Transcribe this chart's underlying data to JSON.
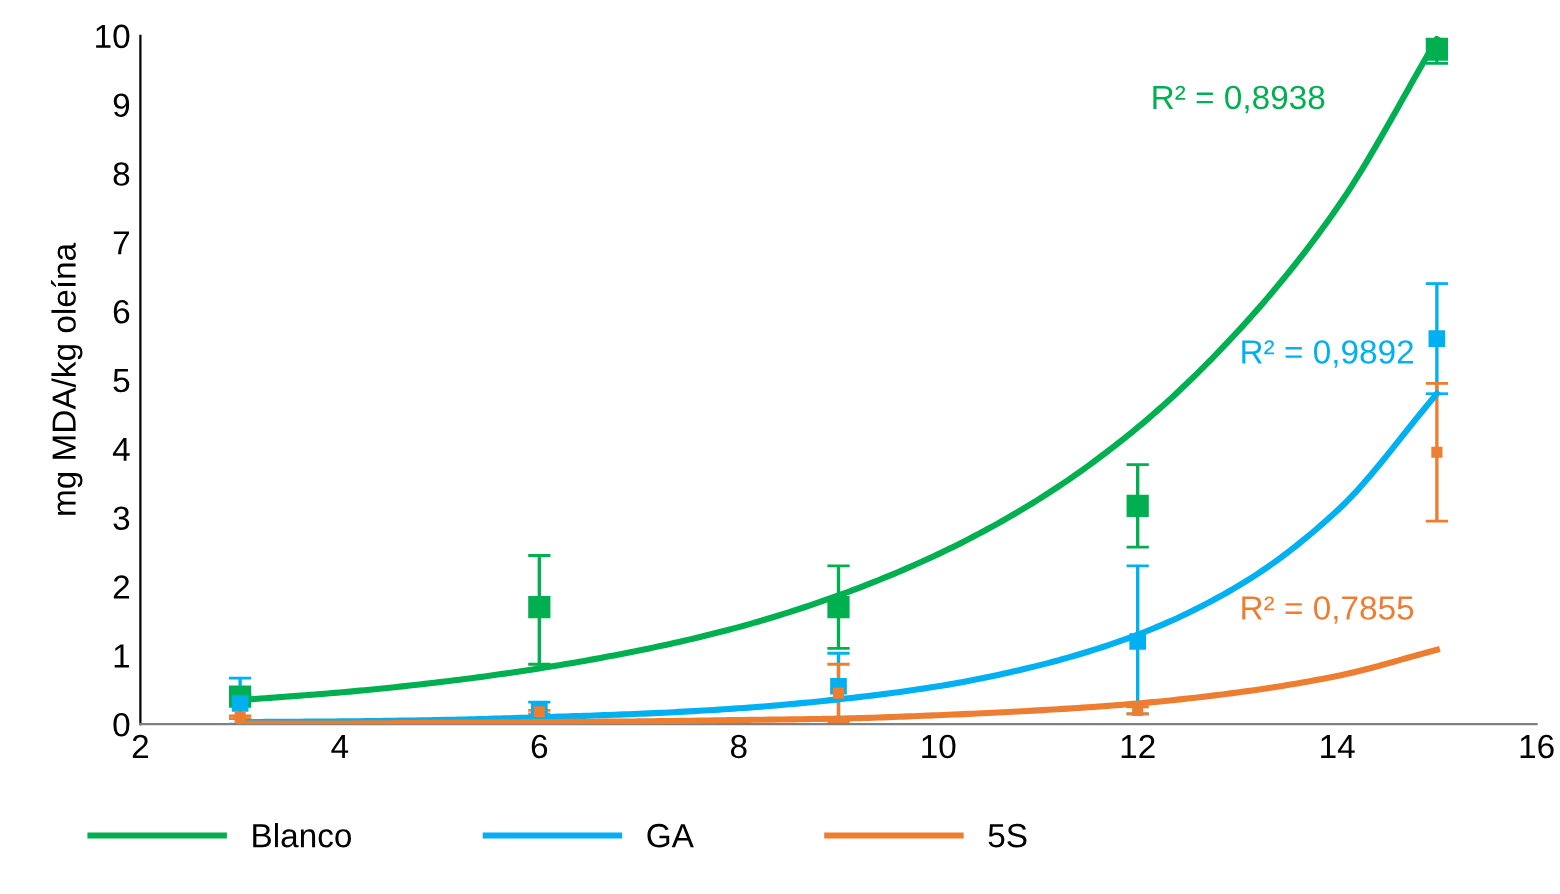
{
  "chart_data": {
    "type": "line",
    "ylabel": "mg MDA/kg oleína",
    "xlim": [
      2,
      16
    ],
    "xticks": [
      2,
      4,
      6,
      8,
      10,
      12,
      14,
      16
    ],
    "ylim": [
      0,
      10
    ],
    "yticks": [
      0,
      1,
      2,
      3,
      4,
      5,
      6,
      7,
      8,
      9,
      10
    ],
    "grid": false,
    "legend": "bottom",
    "marker": "none",
    "line_style": "solid",
    "x": [
      3,
      4,
      5,
      6,
      7,
      8,
      9,
      10,
      11,
      12,
      13,
      14,
      15
    ],
    "series": [
      {
        "name": "Blanco",
        "color": "#00b050",
        "values": [
          0.35,
          0.46,
          0.61,
          0.81,
          1.07,
          1.41,
          1.87,
          2.47,
          3.26,
          4.31,
          5.7,
          7.5,
          9.95
        ]
      },
      {
        "name": "GA",
        "color": "#00b0f0",
        "values": [
          0.03,
          0.04,
          0.06,
          0.1,
          0.15,
          0.23,
          0.36,
          0.55,
          0.85,
          1.3,
          2.0,
          3.1,
          4.8
        ]
      },
      {
        "name": "5S",
        "color": "#ed7d31",
        "values": [
          0.01,
          0.01,
          0.02,
          0.03,
          0.04,
          0.06,
          0.08,
          0.13,
          0.2,
          0.3,
          0.46,
          0.7,
          1.08
        ]
      },
      {
        "type": "scatter",
        "marker": "square",
        "color": "#00b050",
        "x": [
          3,
          6,
          9,
          12,
          15
        ],
        "values": [
          0.4,
          1.7,
          1.7,
          3.17,
          9.8
        ],
        "errors": [
          [
            0.38,
            0.42
          ],
          [
            0.87,
            2.45
          ],
          [
            1.1,
            2.3
          ],
          [
            2.57,
            3.77
          ],
          [
            9.6,
            9.95
          ]
        ]
      },
      {
        "type": "scatter",
        "marker": "square",
        "color": "#00b0f0",
        "x": [
          3,
          6,
          9,
          12,
          15
        ],
        "values": [
          0.3,
          0.2,
          0.55,
          1.2,
          5.6
        ],
        "errors": [
          [
            0,
            0.67
          ],
          [
            0.1,
            0.32
          ],
          [
            0.05,
            1.03
          ],
          [
            0.15,
            2.3
          ],
          [
            4.8,
            6.4
          ]
        ]
      },
      {
        "type": "scatter",
        "marker": "square",
        "color": "#ed7d31",
        "x": [
          3,
          6,
          9,
          12,
          15
        ],
        "values": [
          0.1,
          0.18,
          0.45,
          0.2,
          3.95
        ],
        "errors": [
          [
            0.08,
            0.12
          ],
          [
            0.15,
            0.2
          ],
          [
            0.03,
            0.87
          ],
          [
            0.15,
            0.25
          ],
          [
            2.95,
            4.95
          ]
        ]
      }
    ],
    "annotations": [
      "R² = 0,8938",
      "R² = 0,9892",
      "R² = 0,7855"
    ]
  }
}
